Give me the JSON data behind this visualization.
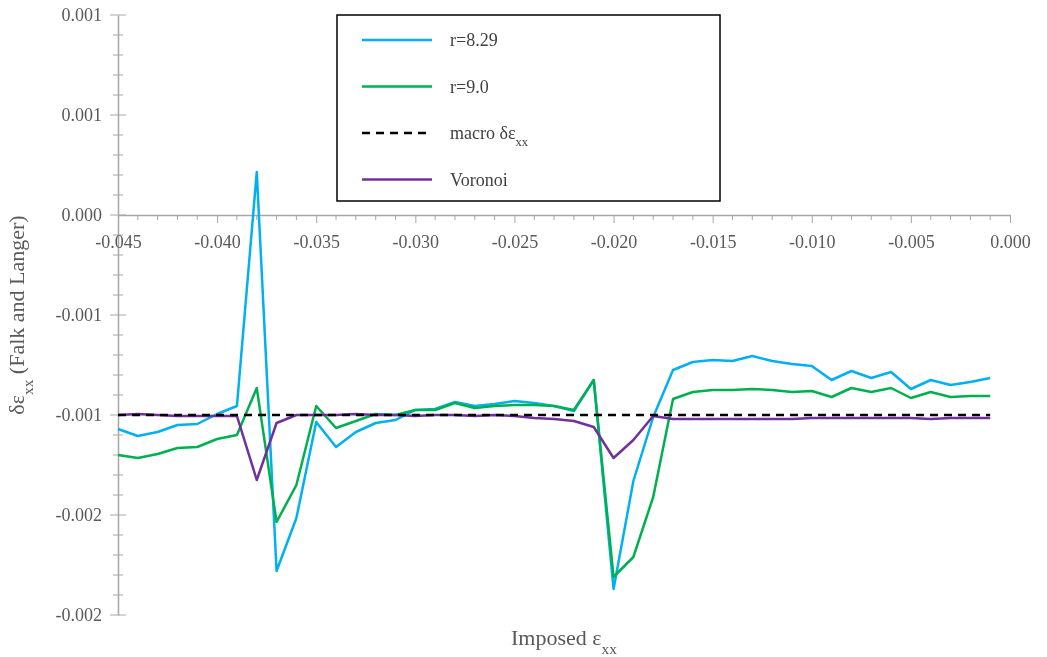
{
  "chart_data": {
    "type": "line",
    "xlabel": "Imposed ε$_{xx}$",
    "ylabel": "δε$_{xx}$ (Falk and Langer)",
    "x": [
      -0.045,
      -0.044,
      -0.043,
      -0.042,
      -0.041,
      -0.04,
      -0.039,
      -0.038,
      -0.037,
      -0.036,
      -0.035,
      -0.034,
      -0.033,
      -0.032,
      -0.031,
      -0.03,
      -0.029,
      -0.028,
      -0.027,
      -0.026,
      -0.025,
      -0.024,
      -0.023,
      -0.022,
      -0.021,
      -0.02,
      -0.019,
      -0.018,
      -0.017,
      -0.016,
      -0.015,
      -0.014,
      -0.013,
      -0.012,
      -0.011,
      -0.01,
      -0.009,
      -0.008,
      -0.007,
      -0.006,
      -0.005,
      -0.004,
      -0.003,
      -0.002,
      -0.001
    ],
    "series": [
      {
        "name": "r=8.29",
        "color": "#00b0f0",
        "values": [
          -0.00107,
          -0.001105,
          -0.001085,
          -0.00105,
          -0.001045,
          -0.000995,
          -0.000955,
          0.000215,
          -0.00178,
          -0.001515,
          -0.001035,
          -0.00116,
          -0.001085,
          -0.00104,
          -0.001025,
          -0.000975,
          -0.00097,
          -0.000935,
          -0.000955,
          -0.000945,
          -0.00093,
          -0.00094,
          -0.000955,
          -0.00098,
          -0.000825,
          -0.00187,
          -0.00133,
          -0.00101,
          -0.000775,
          -0.000735,
          -0.000725,
          -0.00073,
          -0.000705,
          -0.00073,
          -0.000745,
          -0.000755,
          -0.000825,
          -0.00078,
          -0.000815,
          -0.000785,
          -0.00087,
          -0.000825,
          -0.00085,
          -0.000835,
          -0.000815
        ]
      },
      {
        "name": "r=9.0",
        "color": "#00b050",
        "values": [
          -0.0012,
          -0.001215,
          -0.001195,
          -0.001165,
          -0.00116,
          -0.00112,
          -0.0011,
          -0.000865,
          -0.001535,
          -0.00135,
          -0.000955,
          -0.001065,
          -0.00103,
          -0.000995,
          -0.001,
          -0.000975,
          -0.000975,
          -0.00094,
          -0.000965,
          -0.000955,
          -0.00095,
          -0.00095,
          -0.000955,
          -0.000975,
          -0.000825,
          -0.00181,
          -0.00171,
          -0.00141,
          -0.00092,
          -0.000885,
          -0.000875,
          -0.000875,
          -0.00087,
          -0.000875,
          -0.000885,
          -0.00088,
          -0.00091,
          -0.000865,
          -0.000885,
          -0.000865,
          -0.000915,
          -0.000885,
          -0.00091,
          -0.000905,
          -0.000905
        ]
      },
      {
        "name": "macro δε$_{xx}$",
        "color": "#000000",
        "line_style": "dashed",
        "values": [
          -0.001,
          -0.001,
          -0.001,
          -0.001,
          -0.001,
          -0.001,
          -0.001,
          -0.001,
          -0.001,
          -0.001,
          -0.001,
          -0.001,
          -0.001,
          -0.001,
          -0.001,
          -0.001,
          -0.001,
          -0.001,
          -0.001,
          -0.001,
          -0.001,
          -0.001,
          -0.001,
          -0.001,
          -0.001,
          -0.001,
          -0.001,
          -0.001,
          -0.001,
          -0.001,
          -0.001,
          -0.001,
          -0.001,
          -0.001,
          -0.001,
          -0.001,
          -0.001,
          -0.001,
          -0.001,
          -0.001,
          -0.001,
          -0.001,
          -0.001,
          -0.001,
          -0.001
        ]
      },
      {
        "name": "Voronoi",
        "color": "#7030a0",
        "values": [
          -0.001,
          -0.000995,
          -0.001,
          -0.001005,
          -0.001005,
          -0.001005,
          -0.001005,
          -0.001325,
          -0.00104,
          -0.001,
          -0.001,
          -0.001,
          -0.000995,
          -0.001,
          -0.001,
          -0.001005,
          -0.001,
          -0.001,
          -0.001005,
          -0.001,
          -0.001005,
          -0.001015,
          -0.00102,
          -0.00103,
          -0.00106,
          -0.001215,
          -0.001125,
          -0.001005,
          -0.00102,
          -0.00102,
          -0.00102,
          -0.00102,
          -0.00102,
          -0.00102,
          -0.00102,
          -0.001015,
          -0.001015,
          -0.001015,
          -0.001015,
          -0.001015,
          -0.001015,
          -0.00102,
          -0.001015,
          -0.001015,
          -0.001015
        ]
      }
    ],
    "xlim": [
      -0.045,
      0
    ],
    "xticks": [
      {
        "value": -0.045,
        "label": "-0.045"
      },
      {
        "value": -0.04,
        "label": "-0.040"
      },
      {
        "value": -0.035,
        "label": "-0.035"
      },
      {
        "value": -0.03,
        "label": "-0.030"
      },
      {
        "value": -0.025,
        "label": "-0.025"
      },
      {
        "value": -0.02,
        "label": "-0.020"
      },
      {
        "value": -0.015,
        "label": "-0.015"
      },
      {
        "value": -0.01,
        "label": "-0.010"
      },
      {
        "value": -0.005,
        "label": "-0.005"
      },
      {
        "value": 0,
        "label": "0.000"
      }
    ],
    "ylim": [
      -0.002,
      0.001
    ],
    "yticks": [
      {
        "value": 0.001,
        "label": "0.001"
      },
      {
        "value": 0.0005,
        "label": "0.001"
      },
      {
        "value": 0,
        "label": "0.000"
      },
      {
        "value": -0.0005,
        "label": "-0.001"
      },
      {
        "value": -0.001,
        "label": "-0.001"
      },
      {
        "value": -0.0015,
        "label": "-0.002"
      },
      {
        "value": -0.002,
        "label": "-0.002"
      }
    ],
    "grid": false,
    "legend": "top",
    "line_style": "solid",
    "marker": "none"
  }
}
